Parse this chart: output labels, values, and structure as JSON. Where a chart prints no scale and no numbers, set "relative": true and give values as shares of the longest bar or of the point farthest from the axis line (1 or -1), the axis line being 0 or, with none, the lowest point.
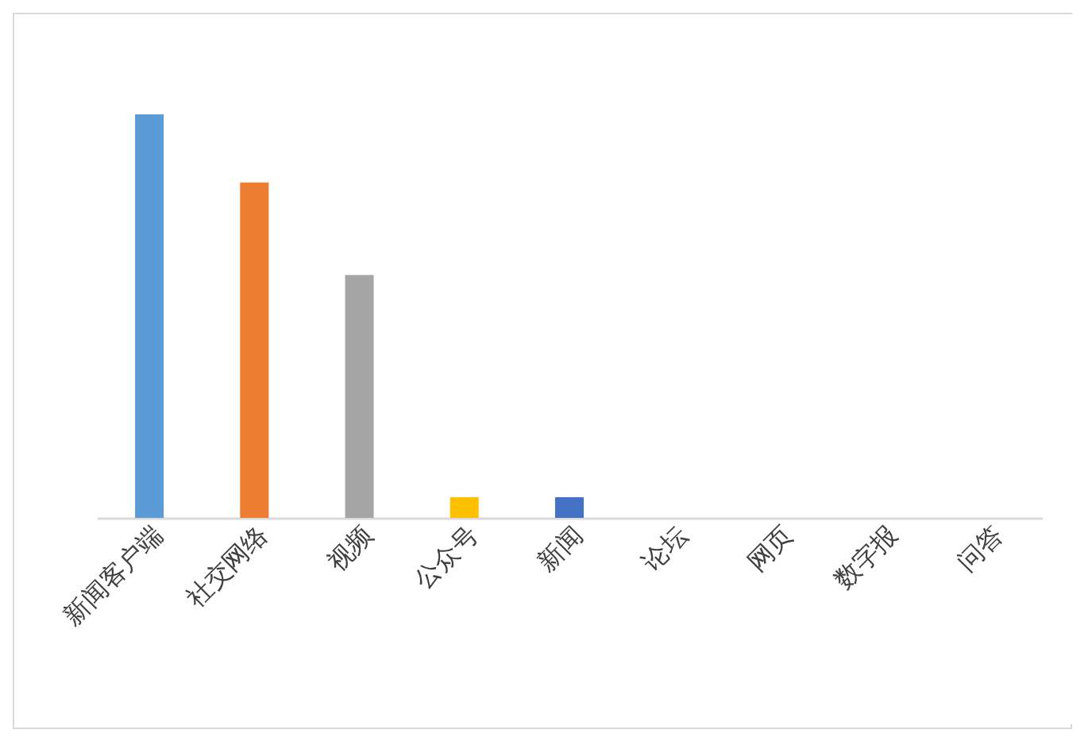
{
  "chart_data": {
    "type": "bar",
    "relative": true,
    "categories": [
      "新闻客户端",
      "社交网络",
      "视频",
      "公众号",
      "新闻",
      "论坛",
      "网页",
      "数字报",
      "问答"
    ],
    "values": [
      1,
      0.831,
      0.602,
      0.051,
      0.051,
      0,
      0,
      0,
      0
    ],
    "colors": [
      "#5b9bd5",
      "#ed7d31",
      "#a5a5a5",
      "#ffc000",
      "#4472c4",
      "#5b9bd5",
      "#5b9bd5",
      "#5b9bd5",
      "#5b9bd5"
    ]
  }
}
